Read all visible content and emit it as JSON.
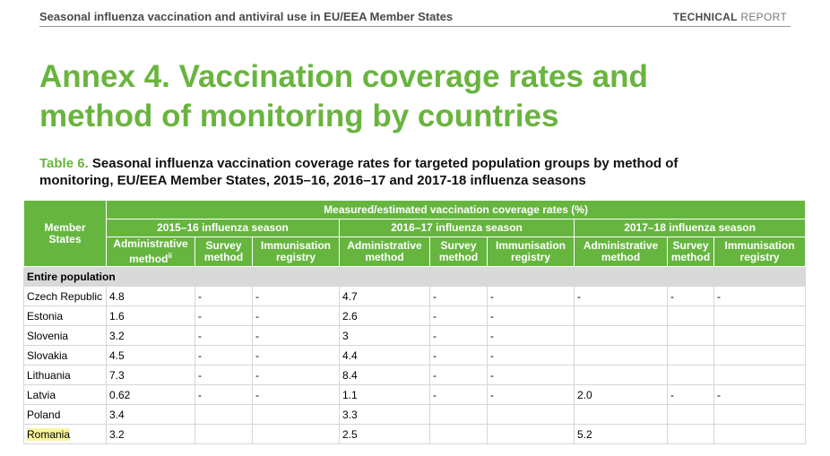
{
  "header": {
    "left": "Seasonal influenza vaccination and antiviral use in EU/EEA Member States",
    "right_bold": "TECHNICAL",
    "right_rest": " REPORT"
  },
  "annex": {
    "line1": "Annex 4. Vaccination coverage rates and",
    "line2": "method of monitoring by countries"
  },
  "caption": {
    "label": "Table 6.",
    "line1": " Seasonal influenza vaccination coverage rates for targeted population groups by method of",
    "line2": "monitoring, EU/EEA Member States, 2015–16, 2016–17 and 2017-18 influenza seasons"
  },
  "table": {
    "member_states_line1": "Member",
    "member_states_line2": "States",
    "measured_header": "Measured/estimated vaccination coverage rates (%)",
    "seasons": [
      "2015–16 influenza season",
      "2016–17 influenza season",
      "2017–18 influenza season"
    ],
    "methods": {
      "admin_line1": "Administrative",
      "admin_line2": "method",
      "admin_sup": "ii",
      "survey_line1": "Survey",
      "survey_line2": "method",
      "registry_line1": "Immunisation",
      "registry_line2": "registry"
    },
    "section": "Entire population",
    "rows": [
      {
        "country": "Czech Republic",
        "cells": [
          "4.8",
          "-",
          "-",
          "4.7",
          "-",
          "-",
          "-",
          "-",
          "-"
        ]
      },
      {
        "country": "Estonia",
        "cells": [
          "1.6",
          "-",
          "-",
          "2.6",
          "-",
          "-",
          "",
          "",
          ""
        ]
      },
      {
        "country": "Slovenia",
        "cells": [
          "3.2",
          "-",
          "-",
          "3",
          "-",
          "-",
          "",
          "",
          ""
        ]
      },
      {
        "country": "Slovakia",
        "cells": [
          "4.5",
          "-",
          "-",
          "4.4",
          "-",
          "-",
          "",
          "",
          ""
        ]
      },
      {
        "country": "Lithuania",
        "cells": [
          "7.3",
          "-",
          "-",
          "8.4",
          "-",
          "-",
          "",
          "",
          ""
        ]
      },
      {
        "country": "Latvia",
        "cells": [
          "0.62",
          "-",
          "-",
          "1.1",
          "-",
          "-",
          "2.0",
          "-",
          "-"
        ]
      },
      {
        "country": "Poland",
        "cells": [
          "3.4",
          "",
          "",
          "3.3",
          "",
          "",
          "",
          "",
          ""
        ]
      },
      {
        "country": "Romania",
        "cells": [
          "3.2",
          "",
          "",
          "2.5",
          "",
          "",
          "5.2",
          "",
          ""
        ]
      }
    ]
  },
  "colors": {
    "accent_green": "#69b43e",
    "header_green": "#66b53f",
    "section_grey": "#d9d9d9",
    "highlight_yellow": "#faf59c"
  }
}
